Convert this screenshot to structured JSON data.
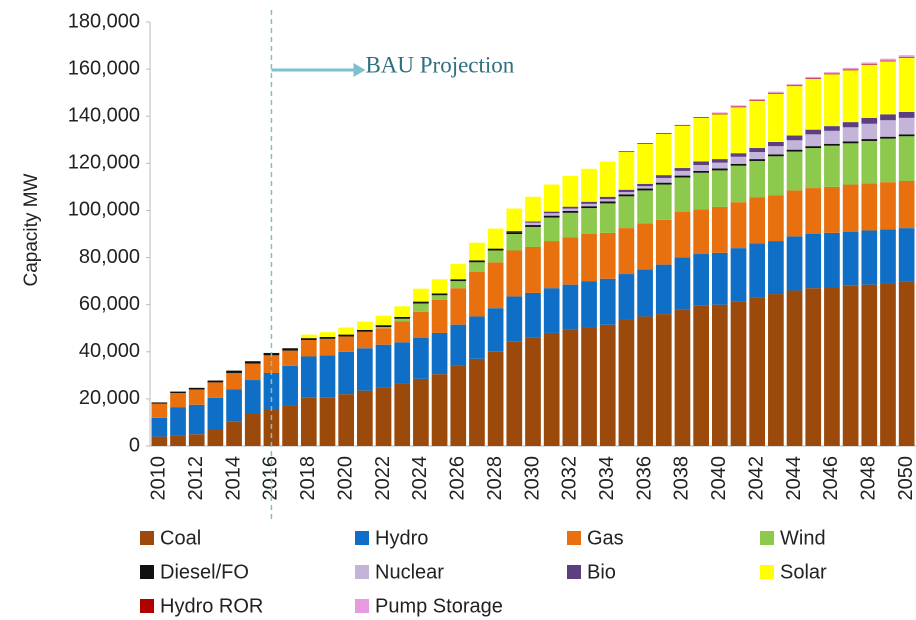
{
  "chart_data": {
    "type": "stacked_bar",
    "y_label": "Capacity MW",
    "annotation": {
      "text": "BAU Projection",
      "category": "2016"
    },
    "categories": [
      "2010",
      null,
      "2012",
      null,
      "2014",
      null,
      "2016",
      null,
      "2018",
      null,
      "2020",
      null,
      "2022",
      null,
      "2024",
      null,
      "2026",
      null,
      "2028",
      null,
      "2030",
      null,
      "2032",
      null,
      "2034",
      null,
      "2036",
      null,
      "2038",
      null,
      "2040",
      null,
      "2042",
      null,
      "2044",
      null,
      "2046",
      null,
      "2048",
      null,
      "2050"
    ],
    "ylim": [
      0,
      180000
    ],
    "yticks": [
      0,
      {
        "value": 20000,
        "label": "20,000"
      },
      {
        "value": 40000,
        "label": "40,000"
      },
      {
        "value": 60000,
        "label": "60,000"
      },
      {
        "value": 80000,
        "label": "80,000"
      },
      {
        "value": 100000,
        "label": "100,000"
      },
      {
        "value": 120000,
        "label": "120,000"
      },
      {
        "value": 140000,
        "label": "140,000"
      },
      {
        "value": 160000,
        "label": "160,000"
      },
      {
        "value": 180000,
        "label": "180,000"
      }
    ],
    "series": [
      {
        "name": "Coal",
        "color": "#9c4a0c",
        "values": [
          4000,
          4500,
          5000,
          7000,
          10500,
          14000,
          15500,
          17000,
          20500,
          20500,
          22000,
          23500,
          25000,
          26500,
          28500,
          30500,
          34000,
          37000,
          40000,
          44500,
          46000,
          48000,
          49500,
          50500,
          51500,
          53500,
          55000,
          56000,
          58000,
          59500,
          60000,
          61500,
          63000,
          64500,
          66000,
          67000,
          67500,
          68000,
          68500,
          69000,
          70000
        ]
      },
      {
        "name": "Hydro",
        "color": "#0f6fc6",
        "values": [
          8000,
          12000,
          12500,
          13500,
          13500,
          14000,
          15500,
          17000,
          17500,
          18000,
          18000,
          18000,
          18000,
          17500,
          17500,
          17500,
          17500,
          18000,
          18500,
          19000,
          19000,
          19000,
          19000,
          19500,
          19500,
          19500,
          20000,
          21000,
          22000,
          22000,
          22000,
          22500,
          23000,
          22500,
          23000,
          23000,
          23000,
          23000,
          23000,
          23000,
          22500
        ]
      },
      {
        "name": "Gas",
        "color": "#e8700e",
        "values": [
          6000,
          6000,
          6500,
          6500,
          7000,
          7000,
          7500,
          6500,
          7000,
          7000,
          6500,
          7000,
          7000,
          9000,
          11000,
          14000,
          15500,
          19000,
          19500,
          19500,
          19500,
          20000,
          20000,
          20000,
          19500,
          19500,
          19500,
          19000,
          19500,
          19000,
          19500,
          19500,
          19500,
          19500,
          19500,
          19500,
          19500,
          20000,
          20000,
          20000,
          20000
        ]
      },
      {
        "name": "Wind",
        "color": "#8cc94c",
        "values": [
          0,
          0,
          0,
          0,
          0,
          0,
          0,
          0,
          0,
          0,
          0,
          0,
          500,
          1000,
          3500,
          2000,
          3000,
          4000,
          5000,
          7000,
          8500,
          10000,
          10500,
          11000,
          12500,
          13500,
          14000,
          15000,
          14500,
          15500,
          15500,
          15500,
          15500,
          16500,
          16500,
          17000,
          17500,
          17500,
          18000,
          18500,
          19000
        ]
      },
      {
        "name": "Diesel/FO",
        "color": "#111111",
        "values": [
          500,
          600,
          700,
          800,
          1000,
          1000,
          1000,
          1000,
          800,
          800,
          800,
          800,
          800,
          800,
          800,
          800,
          800,
          800,
          800,
          800,
          800,
          800,
          800,
          800,
          800,
          800,
          800,
          800,
          800,
          800,
          800,
          800,
          800,
          800,
          800,
          800,
          800,
          800,
          800,
          800,
          800
        ]
      },
      {
        "name": "Nuclear",
        "color": "#c4b4da",
        "values": [
          0,
          0,
          0,
          0,
          0,
          0,
          0,
          0,
          0,
          0,
          0,
          0,
          0,
          0,
          0,
          0,
          0,
          0,
          0,
          0,
          1000,
          1000,
          1000,
          1000,
          1000,
          1000,
          1000,
          2000,
          2000,
          2500,
          2500,
          3000,
          3000,
          3500,
          4000,
          5000,
          5500,
          6000,
          6500,
          7000,
          7000
        ]
      },
      {
        "name": "Bio",
        "color": "#5b3f80",
        "values": [
          0,
          0,
          0,
          0,
          0,
          0,
          0,
          0,
          0,
          0,
          0,
          0,
          0,
          0,
          0,
          0,
          0,
          0,
          0,
          500,
          500,
          700,
          800,
          900,
          1000,
          1000,
          1000,
          1200,
          1200,
          1500,
          1500,
          1500,
          1700,
          1800,
          2000,
          2000,
          2000,
          2200,
          2500,
          2500,
          2500
        ]
      },
      {
        "name": "Solar",
        "color": "#ffff00",
        "values": [
          0,
          0,
          0,
          0,
          0,
          0,
          0,
          0,
          1500,
          2000,
          3000,
          3500,
          4000,
          4500,
          5500,
          6000,
          6500,
          7500,
          8500,
          9500,
          10500,
          11500,
          13000,
          14000,
          15000,
          16000,
          17000,
          17500,
          18000,
          18500,
          19000,
          19500,
          20000,
          20500,
          21000,
          21500,
          22000,
          22000,
          22500,
          22500,
          23000
        ]
      },
      {
        "name": "Hydro ROR",
        "color": "#b00000",
        "values": [
          0,
          0,
          0,
          0,
          0,
          0,
          0,
          0,
          0,
          0,
          0,
          0,
          0,
          0,
          0,
          0,
          0,
          0,
          0,
          0,
          0,
          0,
          0,
          0,
          0,
          300,
          300,
          300,
          300,
          300,
          300,
          300,
          300,
          300,
          300,
          300,
          300,
          300,
          300,
          300,
          300
        ]
      },
      {
        "name": "Pump Storage",
        "color": "#e89ae0",
        "values": [
          0,
          0,
          0,
          0,
          0,
          0,
          0,
          0,
          0,
          0,
          0,
          0,
          0,
          0,
          0,
          0,
          0,
          0,
          0,
          0,
          0,
          0,
          0,
          0,
          0,
          0,
          0,
          0,
          0,
          0,
          500,
          500,
          500,
          500,
          500,
          600,
          600,
          700,
          700,
          800,
          800
        ]
      }
    ],
    "grid": false
  }
}
